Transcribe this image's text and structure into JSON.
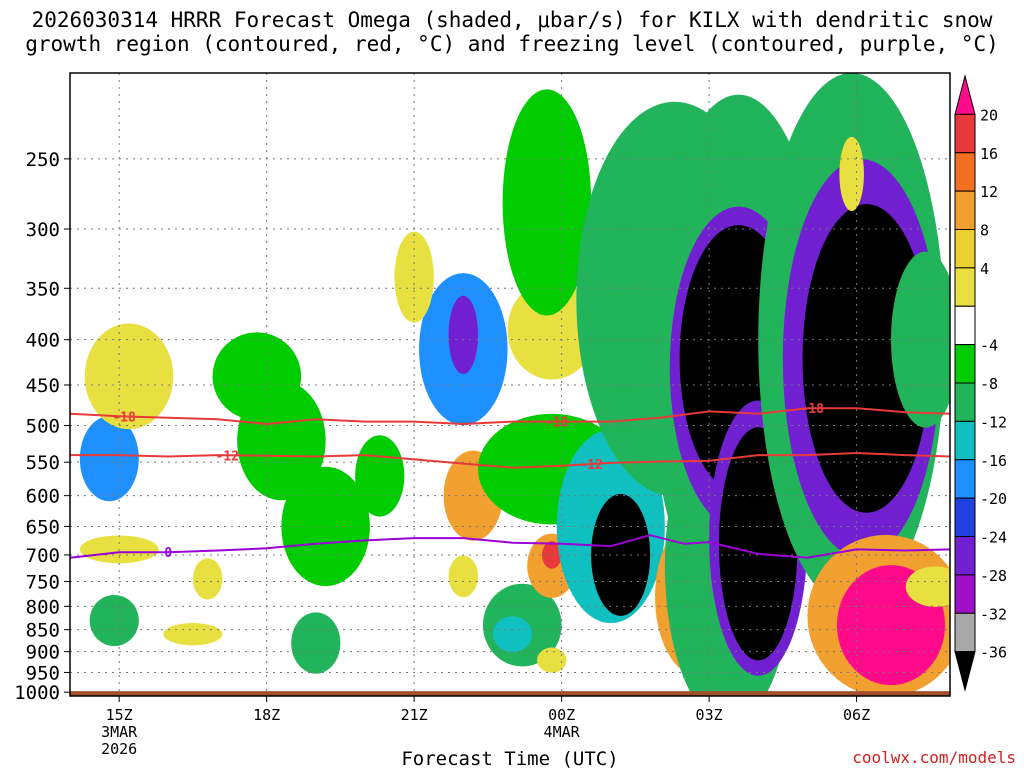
{
  "title_line1": "2026030314 HRRR Forecast Omega (shaded, μbar/s) for KILX with dendritic snow",
  "title_line2": "growth region (contoured, red, °C) and freezing level (contoured, purple, °C)",
  "xlabel": "Forecast Time (UTC)",
  "credit": "coolwx.com/models",
  "colors": {
    "contour_dgz": "#e83a3a",
    "contour_freezing": "#9b00d6",
    "ground": "#a0502a",
    "grid": "#888888"
  },
  "chart_data": {
    "type": "heatmap",
    "title": "2026030314 HRRR Forecast Omega (shaded, μbar/s) for KILX with dendritic snow growth region (contoured, red, °C) and freezing level (contoured, purple, °C)",
    "xlabel": "Forecast Time (UTC)",
    "ylabel": "",
    "x_hours": [
      15,
      18,
      21,
      24,
      27,
      30
    ],
    "x_tick_labels": [
      {
        "label": "15Z",
        "sub1": "3MAR",
        "sub2": "2026"
      },
      {
        "label": "18Z",
        "sub1": "",
        "sub2": ""
      },
      {
        "label": "21Z",
        "sub1": "",
        "sub2": ""
      },
      {
        "label": "00Z",
        "sub1": "4MAR",
        "sub2": ""
      },
      {
        "label": "03Z",
        "sub1": "",
        "sub2": ""
      },
      {
        "label": "06Z",
        "sub1": "",
        "sub2": ""
      }
    ],
    "xlim": [
      14.0,
      31.9
    ],
    "y_pressure_ticks": [
      250,
      300,
      350,
      400,
      450,
      500,
      550,
      600,
      650,
      700,
      750,
      800,
      850,
      900,
      950,
      1000
    ],
    "ylim": [
      200,
      1010
    ],
    "y_scale": "log-pressure",
    "grid": true,
    "colorbar": {
      "label_ticks": [
        "20",
        "16",
        "12",
        "8",
        "4",
        "-4",
        "-8",
        "-12",
        "-16",
        "-20",
        "-24",
        "-28",
        "-32",
        "-36"
      ],
      "levels": [
        20,
        16,
        12,
        8,
        4,
        -4,
        -8,
        -12,
        -16,
        -20,
        -24,
        -28,
        -32,
        -36
      ],
      "segment_colors": [
        "#ff0a8a",
        "#e83a3a",
        "#f26e20",
        "#f2a030",
        "#ecd030",
        "#e8e040",
        "#ffffff",
        "#00cc00",
        "#22b45a",
        "#10c0c0",
        "#1e90ff",
        "#2040e0",
        "#7020d0",
        "#a010c8",
        "#a8a8a8",
        "#000000"
      ],
      "position": "right"
    },
    "omega_cells": [
      {
        "t": 14.8,
        "p": 545,
        "rt": 0.6,
        "rp": 60,
        "v": -16
      },
      {
        "t": 14.9,
        "p": 830,
        "rt": 0.5,
        "rp": 55,
        "v": -10
      },
      {
        "t": 15.2,
        "p": 440,
        "rt": 0.9,
        "rp": 60,
        "v": 5
      },
      {
        "t": 15.0,
        "p": 690,
        "rt": 0.8,
        "rp": 25,
        "v": 5
      },
      {
        "t": 16.8,
        "p": 745,
        "rt": 0.3,
        "rp": 40,
        "v": 5
      },
      {
        "t": 16.5,
        "p": 860,
        "rt": 0.6,
        "rp": 25,
        "v": 5
      },
      {
        "t": 17.8,
        "p": 440,
        "rt": 0.9,
        "rp": 50,
        "v": -6
      },
      {
        "t": 18.3,
        "p": 520,
        "rt": 0.9,
        "rp": 80,
        "v": -6
      },
      {
        "t": 19.2,
        "p": 650,
        "rt": 0.9,
        "rp": 100,
        "v": -6
      },
      {
        "t": 19.0,
        "p": 880,
        "rt": 0.5,
        "rp": 70,
        "v": -10
      },
      {
        "t": 20.3,
        "p": 570,
        "rt": 0.5,
        "rp": 60,
        "v": -6
      },
      {
        "t": 22.0,
        "p": 410,
        "rt": 0.9,
        "rp": 80,
        "v": -16
      },
      {
        "t": 22.0,
        "p": 395,
        "rt": 0.3,
        "rp": 40,
        "v": -24
      },
      {
        "t": 21.0,
        "p": 340,
        "rt": 0.4,
        "rp": 40,
        "v": 5
      },
      {
        "t": 22.2,
        "p": 600,
        "rt": 0.6,
        "rp": 70,
        "v": 10
      },
      {
        "t": 22.0,
        "p": 740,
        "rt": 0.3,
        "rp": 40,
        "v": 5
      },
      {
        "t": 23.8,
        "p": 390,
        "rt": 0.9,
        "rp": 50,
        "v": 5
      },
      {
        "t": 23.7,
        "p": 280,
        "rt": 0.9,
        "rp": 80,
        "v": -6
      },
      {
        "t": 23.8,
        "p": 560,
        "rt": 1.5,
        "rp": 80,
        "v": -6
      },
      {
        "t": 23.2,
        "p": 840,
        "rt": 0.8,
        "rp": 90,
        "v": -8
      },
      {
        "t": 23.0,
        "p": 860,
        "rt": 0.4,
        "rp": 40,
        "v": -14
      },
      {
        "t": 23.8,
        "p": 720,
        "rt": 0.5,
        "rp": 60,
        "v": 10
      },
      {
        "t": 23.8,
        "p": 700,
        "rt": 0.2,
        "rp": 25,
        "v": 18
      },
      {
        "t": 23.8,
        "p": 920,
        "rt": 0.3,
        "rp": 30,
        "v": 5
      },
      {
        "t": 25.0,
        "p": 650,
        "rt": 1.1,
        "rp": 160,
        "v": -12
      },
      {
        "t": 25.2,
        "p": 700,
        "rt": 0.6,
        "rp": 110,
        "v": -36
      },
      {
        "t": 26.8,
        "p": 780,
        "rt": 0.9,
        "rp": 160,
        "v": 10
      },
      {
        "t": 26.8,
        "p": 820,
        "rt": 0.5,
        "rp": 80,
        "v": 20
      },
      {
        "t": 26.7,
        "p": 550,
        "rt": 0.6,
        "rp": 110,
        "v": 10
      },
      {
        "t": 26.9,
        "p": 560,
        "rt": 0.3,
        "rp": 50,
        "v": 20
      },
      {
        "t": 26.3,
        "p": 360,
        "rt": 2.0,
        "rp": 170,
        "v": -8
      },
      {
        "t": 27.6,
        "p": 420,
        "rt": 1.8,
        "rp": 250,
        "v": -8
      },
      {
        "t": 27.4,
        "p": 720,
        "rt": 1.3,
        "rp": 280,
        "v": -8
      },
      {
        "t": 27.6,
        "p": 430,
        "rt": 1.4,
        "rp": 170,
        "v": -26
      },
      {
        "t": 27.6,
        "p": 420,
        "rt": 1.2,
        "rp": 140,
        "v": -36
      },
      {
        "t": 28.0,
        "p": 670,
        "rt": 1.0,
        "rp": 230,
        "v": -26
      },
      {
        "t": 28.0,
        "p": 680,
        "rt": 0.8,
        "rp": 200,
        "v": -36
      },
      {
        "t": 29.0,
        "p": 450,
        "rt": 0.3,
        "rp": 50,
        "v": 20
      },
      {
        "t": 29.9,
        "p": 400,
        "rt": 1.9,
        "rp": 240,
        "v": -10
      },
      {
        "t": 30.1,
        "p": 420,
        "rt": 1.6,
        "rp": 200,
        "v": -26
      },
      {
        "t": 30.2,
        "p": 420,
        "rt": 1.3,
        "rp": 160,
        "v": -36
      },
      {
        "t": 30.6,
        "p": 820,
        "rt": 1.6,
        "rp": 170,
        "v": 10
      },
      {
        "t": 30.7,
        "p": 840,
        "rt": 1.1,
        "rp": 130,
        "v": 20
      },
      {
        "t": 29.9,
        "p": 260,
        "rt": 0.25,
        "rp": 25,
        "v": 5
      },
      {
        "t": 31.6,
        "p": 760,
        "rt": 0.6,
        "rp": 40,
        "v": 5
      },
      {
        "t": 31.4,
        "p": 400,
        "rt": 0.7,
        "rp": 90,
        "v": -8
      }
    ],
    "series": [
      {
        "name": "-18",
        "kind": "dgz",
        "label_at": [
          15.1,
          23.9,
          29.1
        ],
        "x": [
          14.0,
          15.0,
          16.0,
          17.0,
          18.0,
          19.0,
          20.0,
          21.0,
          22.0,
          23.0,
          24.0,
          25.0,
          26.0,
          27.0,
          28.0,
          29.0,
          30.0,
          31.0,
          31.9
        ],
        "y": [
          485,
          488,
          490,
          492,
          498,
          492,
          495,
          495,
          498,
          495,
          495,
          495,
          490,
          482,
          485,
          478,
          478,
          483,
          485
        ]
      },
      {
        "name": "-12",
        "kind": "dgz",
        "label_at": [
          17.2,
          24.6
        ],
        "x": [
          14.0,
          15.0,
          16.0,
          17.0,
          18.0,
          19.0,
          20.0,
          21.0,
          22.0,
          23.0,
          24.0,
          25.0,
          26.0,
          27.0,
          28.0,
          29.0,
          30.0,
          31.0,
          31.9
        ],
        "y": [
          540,
          540,
          542,
          540,
          541,
          542,
          540,
          546,
          552,
          558,
          555,
          551,
          549,
          548,
          540,
          540,
          537,
          540,
          542
        ]
      },
      {
        "name": "0",
        "kind": "freezing",
        "label_at": [
          16.0
        ],
        "x": [
          14.0,
          15.0,
          16.0,
          17.0,
          18.0,
          19.0,
          20.0,
          21.0,
          22.0,
          23.0,
          24.0,
          25.0,
          25.8,
          26.5,
          27.0,
          28.0,
          29.0,
          30.0,
          31.0,
          31.9
        ],
        "y": [
          705,
          695,
          695,
          692,
          688,
          680,
          674,
          670,
          670,
          678,
          680,
          684,
          665,
          680,
          677,
          698,
          705,
          690,
          692,
          690
        ]
      }
    ]
  }
}
